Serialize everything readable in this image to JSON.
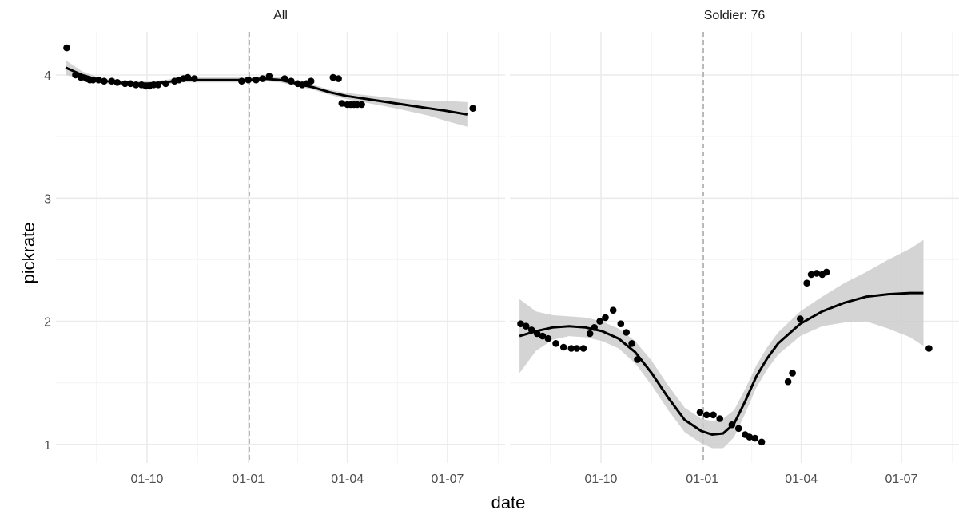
{
  "chart_data": {
    "type": "scatter",
    "xlabel": "date",
    "ylabel": "pickrate",
    "ylim": [
      0.85,
      4.35
    ],
    "y_ticks": [
      "1",
      "2",
      "3",
      "4"
    ],
    "x_ticks": [
      "01-10",
      "01-01",
      "01-04",
      "01-07"
    ],
    "x_tick_days": [
      59,
      151,
      241,
      332
    ],
    "x_range_days": [
      0,
      364
    ],
    "vline_day": 152,
    "panels": [
      {
        "title": "All",
        "points": [
          [
            -14,
            4.22
          ],
          [
            -6,
            4.0
          ],
          [
            -1,
            3.98
          ],
          [
            4,
            3.97
          ],
          [
            7,
            3.96
          ],
          [
            10,
            3.96
          ],
          [
            15,
            3.96
          ],
          [
            20,
            3.95
          ],
          [
            27,
            3.95
          ],
          [
            32,
            3.94
          ],
          [
            39,
            3.93
          ],
          [
            44,
            3.93
          ],
          [
            49,
            3.92
          ],
          [
            54,
            3.92
          ],
          [
            58,
            3.91
          ],
          [
            61,
            3.91
          ],
          [
            65,
            3.92
          ],
          [
            69,
            3.92
          ],
          [
            76,
            3.93
          ],
          [
            84,
            3.95
          ],
          [
            88,
            3.96
          ],
          [
            92,
            3.97
          ],
          [
            96,
            3.98
          ],
          [
            102,
            3.97
          ],
          [
            145,
            3.95
          ],
          [
            151,
            3.96
          ],
          [
            158,
            3.96
          ],
          [
            164,
            3.97
          ],
          [
            170,
            3.99
          ],
          [
            184,
            3.97
          ],
          [
            190,
            3.95
          ],
          [
            196,
            3.93
          ],
          [
            200,
            3.92
          ],
          [
            204,
            3.93
          ],
          [
            208,
            3.95
          ],
          [
            228,
            3.98
          ],
          [
            233,
            3.97
          ],
          [
            236,
            3.77
          ],
          [
            241,
            3.76
          ],
          [
            244,
            3.76
          ],
          [
            247,
            3.76
          ],
          [
            250,
            3.76
          ],
          [
            254,
            3.76
          ],
          [
            355,
            3.73
          ]
        ],
        "smooth": [
          [
            -15,
            4.06
          ],
          [
            0,
            4.0
          ],
          [
            15,
            3.96
          ],
          [
            30,
            3.94
          ],
          [
            45,
            3.93
          ],
          [
            60,
            3.93
          ],
          [
            75,
            3.94
          ],
          [
            90,
            3.96
          ],
          [
            105,
            3.96
          ],
          [
            120,
            3.96
          ],
          [
            135,
            3.96
          ],
          [
            150,
            3.96
          ],
          [
            165,
            3.97
          ],
          [
            180,
            3.96
          ],
          [
            195,
            3.93
          ],
          [
            210,
            3.9
          ],
          [
            225,
            3.86
          ],
          [
            240,
            3.83
          ],
          [
            255,
            3.81
          ],
          [
            270,
            3.79
          ],
          [
            285,
            3.77
          ],
          [
            300,
            3.75
          ],
          [
            315,
            3.73
          ],
          [
            330,
            3.71
          ],
          [
            350,
            3.68
          ]
        ],
        "band_width": [
          0.06,
          0.03,
          0.02,
          0.02,
          0.02,
          0.02,
          0.02,
          0.02,
          0.02,
          0.02,
          0.02,
          0.02,
          0.02,
          0.02,
          0.02,
          0.02,
          0.02,
          0.025,
          0.03,
          0.035,
          0.04,
          0.05,
          0.06,
          0.08,
          0.1
        ]
      },
      {
        "title": "Soldier: 76",
        "points": [
          [
            -14,
            1.98
          ],
          [
            -9,
            1.96
          ],
          [
            -4,
            1.93
          ],
          [
            1,
            1.9
          ],
          [
            6,
            1.88
          ],
          [
            11,
            1.86
          ],
          [
            18,
            1.82
          ],
          [
            25,
            1.79
          ],
          [
            32,
            1.78
          ],
          [
            37,
            1.78
          ],
          [
            43,
            1.78
          ],
          [
            49,
            1.9
          ],
          [
            53,
            1.95
          ],
          [
            58,
            2.0
          ],
          [
            63,
            2.03
          ],
          [
            70,
            2.09
          ],
          [
            77,
            1.98
          ],
          [
            82,
            1.91
          ],
          [
            87,
            1.82
          ],
          [
            92,
            1.69
          ],
          [
            149,
            1.26
          ],
          [
            155,
            1.24
          ],
          [
            161,
            1.24
          ],
          [
            167,
            1.21
          ],
          [
            178,
            1.16
          ],
          [
            184,
            1.13
          ],
          [
            190,
            1.08
          ],
          [
            194,
            1.06
          ],
          [
            199,
            1.05
          ],
          [
            205,
            1.02
          ],
          [
            229,
            1.51
          ],
          [
            233,
            1.58
          ],
          [
            240,
            2.02
          ],
          [
            246,
            2.31
          ],
          [
            250,
            2.38
          ],
          [
            255,
            2.39
          ],
          [
            260,
            2.38
          ],
          [
            264,
            2.4
          ],
          [
            357,
            1.78
          ]
        ],
        "smooth": [
          [
            -15,
            1.88
          ],
          [
            0,
            1.92
          ],
          [
            15,
            1.95
          ],
          [
            30,
            1.96
          ],
          [
            45,
            1.95
          ],
          [
            60,
            1.92
          ],
          [
            75,
            1.86
          ],
          [
            90,
            1.75
          ],
          [
            105,
            1.58
          ],
          [
            120,
            1.38
          ],
          [
            135,
            1.2
          ],
          [
            150,
            1.11
          ],
          [
            160,
            1.08
          ],
          [
            170,
            1.09
          ],
          [
            180,
            1.17
          ],
          [
            190,
            1.35
          ],
          [
            200,
            1.55
          ],
          [
            210,
            1.7
          ],
          [
            220,
            1.82
          ],
          [
            240,
            1.98
          ],
          [
            260,
            2.08
          ],
          [
            280,
            2.15
          ],
          [
            300,
            2.2
          ],
          [
            320,
            2.22
          ],
          [
            340,
            2.23
          ],
          [
            352,
            2.23
          ]
        ],
        "band_width": [
          0.3,
          0.16,
          0.1,
          0.08,
          0.08,
          0.08,
          0.08,
          0.09,
          0.1,
          0.1,
          0.1,
          0.1,
          0.11,
          0.12,
          0.11,
          0.1,
          0.09,
          0.09,
          0.09,
          0.1,
          0.12,
          0.16,
          0.2,
          0.28,
          0.36,
          0.43
        ]
      }
    ]
  }
}
